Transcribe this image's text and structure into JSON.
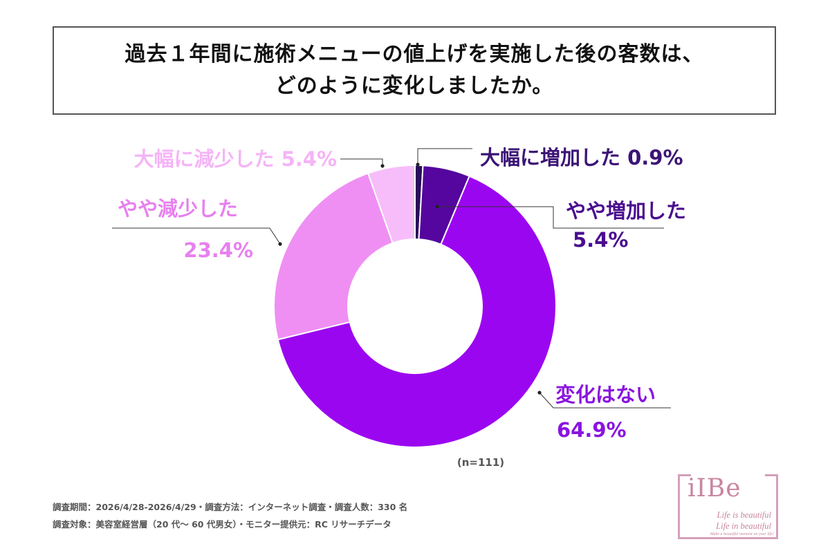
{
  "title": {
    "line1": "過去１年間に施術メニューの値上げを実施した後の客数は、",
    "line2": "どのように変化しましたか。"
  },
  "chart_data": {
    "type": "pie",
    "donut": true,
    "sample_label": "(n=111)",
    "slices": [
      {
        "label": "大幅に増加した",
        "value_text": "0.9%",
        "value": 0.9,
        "color": "#2a0e5a",
        "label_color": "#3b1475"
      },
      {
        "label": "やや増加した",
        "value_text": "5.4%",
        "value": 5.4,
        "color": "#55069e",
        "label_color": "#4a0c8f"
      },
      {
        "label": "変化はない",
        "value_text": "64.9%",
        "value": 64.9,
        "color": "#9b06f0",
        "label_color": "#8a14df"
      },
      {
        "label": "やや減少した",
        "value_text": "23.4%",
        "value": 23.4,
        "color": "#ef8ff3",
        "label_color": "#e780ef"
      },
      {
        "label": "大幅に減少した",
        "value_text": "5.4%",
        "value": 5.4,
        "color": "#f7bdfa",
        "label_color": "#f5b4f7"
      }
    ]
  },
  "footer": {
    "line1": "調査期間：2026/4/28-2026/4/29・調査方法：インターネット調査・調査人数：330 名",
    "line2": "調査対象：美容室経営層（20 代〜 60 代男女）・モニター提供元：RC リサーチデータ"
  },
  "logo": {
    "text": "iIBe",
    "tagline1": "Life is beautiful",
    "tagline2": "Life in beautiful",
    "tagline3": "Make a beautiful moment on your life!"
  }
}
